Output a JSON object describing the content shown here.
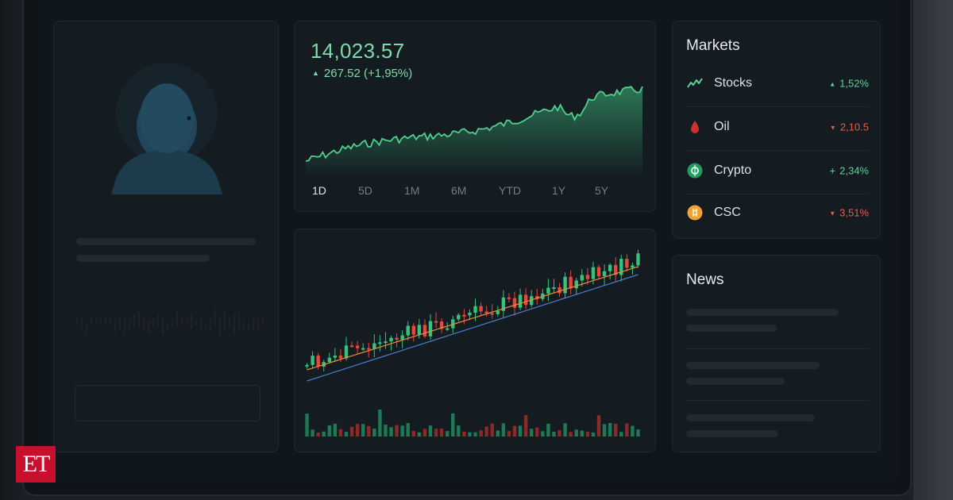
{
  "ticker": {
    "price": "14,023.57",
    "change": "267.52 (+1,95%)",
    "direction": "up",
    "accent_color": "#4fd08f"
  },
  "time_ranges": {
    "items": [
      "1D",
      "5D",
      "1M",
      "6M",
      "YTD",
      "1Y",
      "5Y"
    ],
    "active": "1D"
  },
  "markets": {
    "title": "Markets",
    "items": [
      {
        "name": "Stocks",
        "change": "1,52%",
        "direction": "up",
        "icon": "trend-line-icon",
        "color": "#5fd39a"
      },
      {
        "name": "Oil",
        "change": "2,10.5",
        "direction": "down",
        "icon": "oil-drop-icon",
        "color": "#d0302a"
      },
      {
        "name": "Crypto",
        "change": "2,34%",
        "direction": "up",
        "icon": "crypto-coin-icon",
        "color": "#1f9d62"
      },
      {
        "name": "CSC",
        "change": "3,51%",
        "direction": "down",
        "icon": "gold-coin-icon",
        "color": "#f0a330"
      }
    ]
  },
  "news": {
    "title": "News"
  },
  "logo": {
    "text": "ET",
    "color": "#c8102e"
  },
  "icons": {
    "profile": "user-avatar-icon",
    "arrow_up": "triangle-up-icon",
    "arrow_down": "triangle-down-icon"
  }
}
